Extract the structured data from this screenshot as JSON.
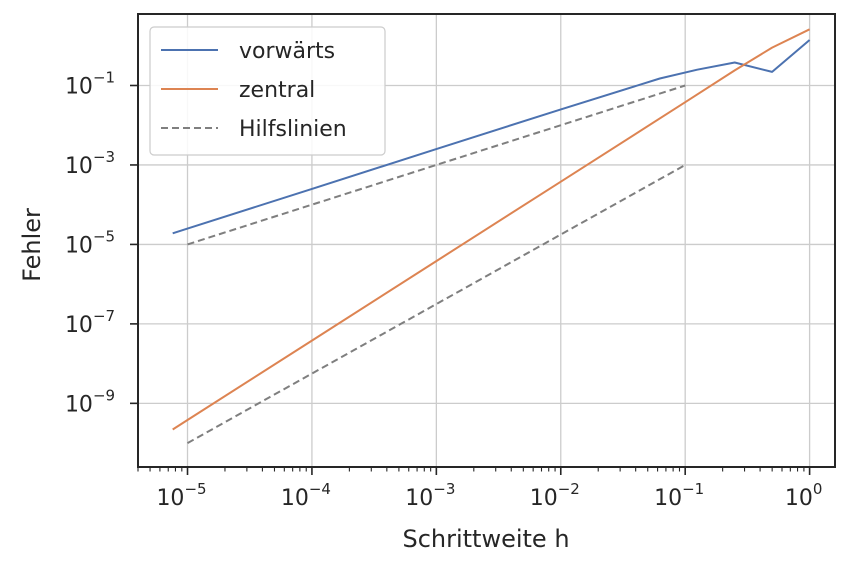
{
  "chart_data": {
    "type": "line",
    "xlabel": "Schrittweite h",
    "ylabel": "Fehler",
    "xscale": "log",
    "yscale": "log",
    "xlim": [
      4e-06,
      1.6
    ],
    "ylim": [
      2.5e-11,
      6.3
    ],
    "grid": true,
    "legend_position": "top-left",
    "x_ticks": [
      {
        "base": "10",
        "exp": "−5",
        "value": 1e-05
      },
      {
        "base": "10",
        "exp": "−4",
        "value": 0.0001
      },
      {
        "base": "10",
        "exp": "−3",
        "value": 0.001
      },
      {
        "base": "10",
        "exp": "−2",
        "value": 0.01
      },
      {
        "base": "10",
        "exp": "−1",
        "value": 0.1
      },
      {
        "base": "10",
        "exp": "0",
        "value": 1
      }
    ],
    "y_ticks": [
      {
        "base": "10",
        "exp": "−9",
        "value": 1e-09
      },
      {
        "base": "10",
        "exp": "−7",
        "value": 1e-07
      },
      {
        "base": "10",
        "exp": "−5",
        "value": 1e-05
      },
      {
        "base": "10",
        "exp": "−3",
        "value": 0.001
      },
      {
        "base": "10",
        "exp": "−1",
        "value": 0.1
      }
    ],
    "series": [
      {
        "name": "vorwärts",
        "color": "#4c72b0",
        "dash": "solid",
        "x": [
          7.6e-06,
          1e-05,
          0.0001,
          0.001,
          0.01,
          0.0625,
          0.125,
          0.25,
          0.5,
          1
        ],
        "y": [
          1.9e-05,
          2.5e-05,
          0.00025,
          0.0025,
          0.025,
          0.15,
          0.25,
          0.38,
          0.22,
          1.4
        ]
      },
      {
        "name": "zentral",
        "color": "#dd8452",
        "dash": "solid",
        "x": [
          7.6e-06,
          1e-05,
          0.0001,
          0.001,
          0.01,
          0.1,
          0.25,
          0.5,
          1
        ],
        "y": [
          2.2e-10,
          3.8e-10,
          3.8e-08,
          3.8e-06,
          0.00038,
          0.038,
          0.24,
          0.9,
          2.6
        ]
      },
      {
        "name": "Hilfslinien",
        "color": "#7f7f7f",
        "dash": "dashed",
        "x": [
          1e-05,
          0.1
        ],
        "y": [
          1e-05,
          0.1
        ]
      },
      {
        "name": "",
        "color": "#7f7f7f",
        "dash": "dashed",
        "x": [
          1e-05,
          0.1
        ],
        "y": [
          1e-10,
          0.001
        ]
      }
    ],
    "legend": [
      {
        "label": "vorwärts",
        "color": "#4c72b0",
        "dash": "solid"
      },
      {
        "label": "zentral",
        "color": "#dd8452",
        "dash": "solid"
      },
      {
        "label": "Hilfslinien",
        "color": "#7f7f7f",
        "dash": "dashed"
      }
    ]
  }
}
